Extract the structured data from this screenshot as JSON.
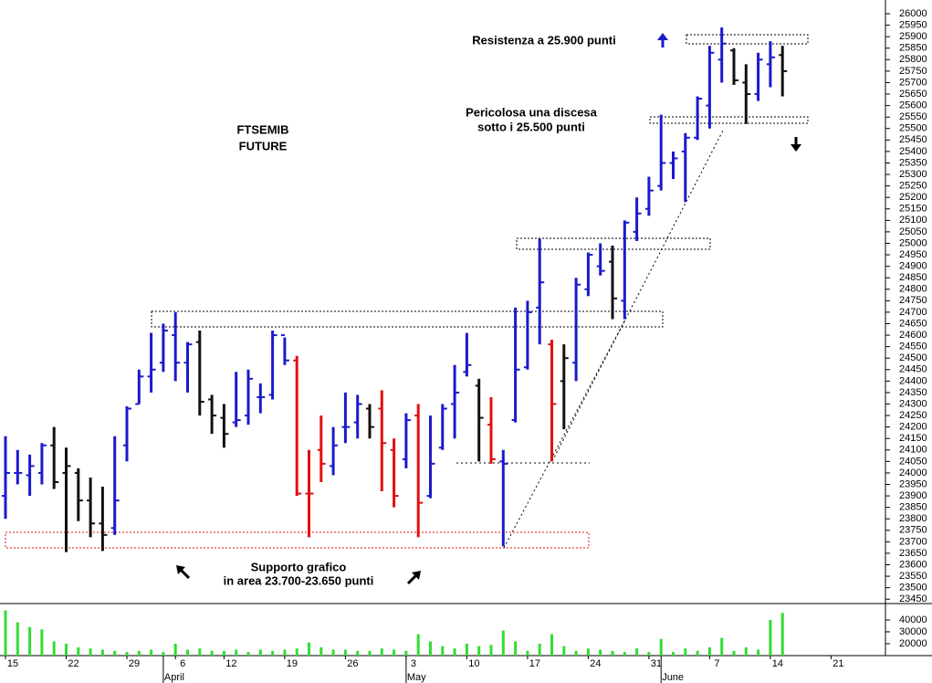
{
  "chart_data": {
    "type": "ohlc",
    "categories": [
      "15",
      null,
      null,
      null,
      null,
      "22",
      null,
      null,
      null,
      null,
      "29",
      null,
      null,
      null,
      "6",
      null,
      null,
      null,
      "12",
      null,
      null,
      null,
      null,
      "19",
      null,
      null,
      null,
      null,
      "26",
      null,
      null,
      null,
      null,
      "3",
      null,
      null,
      null,
      null,
      "10",
      null,
      null,
      null,
      null,
      "17",
      null,
      null,
      null,
      null,
      "24",
      null,
      null,
      null,
      null,
      "31",
      null,
      null,
      null,
      null,
      "7",
      null,
      null,
      null,
      null,
      "14",
      null,
      null,
      null,
      null,
      "21"
    ],
    "months": [
      null,
      null,
      null,
      null,
      null,
      null,
      null,
      null,
      null,
      null,
      null,
      null,
      null,
      "April",
      null,
      null,
      null,
      null,
      null,
      null,
      null,
      null,
      null,
      null,
      null,
      null,
      null,
      null,
      null,
      null,
      null,
      null,
      null,
      "May",
      null,
      null,
      null,
      null,
      null,
      null,
      null,
      null,
      null,
      null,
      null,
      null,
      null,
      null,
      null,
      null,
      null,
      null,
      null,
      null,
      "June",
      null,
      null,
      null,
      null,
      null,
      null,
      null,
      null,
      null,
      null,
      null,
      null,
      null,
      null
    ],
    "open": [
      23900,
      24000,
      23990,
      24000,
      24120,
      24000,
      24000,
      23880,
      23780,
      23760,
      24120,
      24300,
      24420,
      24480,
      24600,
      24480,
      24570,
      24320,
      24240,
      24220,
      24250,
      24330,
      24340,
      24600,
      24490,
      23910,
      24100,
      24030,
      24200,
      24220,
      24280,
      24280,
      24100,
      24060,
      24250,
      23900,
      24110,
      24300,
      24440,
      24380,
      24210,
      24050,
      24230,
      24460,
      24720,
      24560,
      24400,
      24480,
      24800,
      24900,
      24920,
      24750,
      25050,
      25150,
      25250,
      25350,
      25400,
      25460,
      25600,
      25800,
      25840,
      25700,
      25650,
      25780,
      25820,
      null,
      null,
      null,
      null
    ],
    "high": [
      24160,
      24100,
      24080,
      24130,
      24200,
      24110,
      24020,
      23980,
      23940,
      24160,
      24290,
      24450,
      24610,
      24650,
      24700,
      24570,
      24620,
      24340,
      24300,
      24440,
      24450,
      24390,
      24620,
      24590,
      24510,
      24100,
      24250,
      24200,
      24350,
      24340,
      24300,
      24360,
      24150,
      24260,
      24300,
      24250,
      24300,
      24470,
      24610,
      24410,
      24330,
      24100,
      24720,
      24750,
      25020,
      24580,
      24560,
      24850,
      24960,
      25000,
      24990,
      25100,
      25200,
      25290,
      25560,
      25400,
      25480,
      25640,
      25860,
      25940,
      25850,
      25780,
      25830,
      25880,
      25860,
      null,
      null,
      null,
      null
    ],
    "low": [
      23800,
      23950,
      23900,
      23950,
      23930,
      23655,
      23790,
      23720,
      23660,
      23730,
      24050,
      24300,
      24350,
      24440,
      24400,
      24350,
      24250,
      24170,
      24110,
      24200,
      24210,
      24260,
      24320,
      24470,
      23900,
      23720,
      23960,
      23990,
      24130,
      24150,
      24150,
      23920,
      23850,
      24020,
      23720,
      23890,
      24100,
      24150,
      24420,
      24050,
      24040,
      23680,
      24220,
      24450,
      24560,
      24050,
      24190,
      24400,
      24770,
      24860,
      24670,
      24670,
      25010,
      25120,
      25230,
      25280,
      25180,
      25450,
      25500,
      25700,
      25690,
      25520,
      25620,
      25680,
      25640,
      null,
      null,
      null,
      null
    ],
    "close": [
      24000,
      24000,
      24030,
      24120,
      23960,
      24030,
      23880,
      23780,
      23730,
      23880,
      24280,
      24420,
      24450,
      24620,
      24480,
      24560,
      24310,
      24250,
      24170,
      24230,
      24410,
      24330,
      24600,
      24490,
      23910,
      23910,
      24040,
      24120,
      24200,
      24300,
      24200,
      24130,
      23900,
      24230,
      23870,
      24040,
      24280,
      24350,
      24470,
      24240,
      24060,
      24040,
      24450,
      24700,
      24830,
      24300,
      24500,
      24820,
      24950,
      24880,
      24760,
      25090,
      25130,
      25230,
      25350,
      25370,
      25460,
      25630,
      25830,
      25870,
      25710,
      25650,
      25800,
      25810,
      25750,
      null,
      null,
      null,
      null
    ],
    "colors": [
      "#1a1acc",
      "#1a1acc",
      "#1a1acc",
      "#1a1acc",
      "#111111",
      "#111111",
      "#111111",
      "#111111",
      "#111111",
      "#1a1acc",
      "#1a1acc",
      "#1a1acc",
      "#1a1acc",
      "#1a1acc",
      "#1a1acc",
      "#1a1acc",
      "#111111",
      "#111111",
      "#111111",
      "#1a1acc",
      "#1a1acc",
      "#1a1acc",
      "#1a1acc",
      "#1a1acc",
      "#e01010",
      "#e01010",
      "#e01010",
      "#1a1acc",
      "#1a1acc",
      "#1a1acc",
      "#111111",
      "#e01010",
      "#e01010",
      "#1a1acc",
      "#e01010",
      "#1a1acc",
      "#1a1acc",
      "#1a1acc",
      "#1a1acc",
      "#111111",
      "#e01010",
      "#1a1acc",
      "#1a1acc",
      "#1a1acc",
      "#1a1acc",
      "#e01010",
      "#111111",
      "#1a1acc",
      "#1a1acc",
      "#1a1acc",
      "#111111",
      "#1a1acc",
      "#1a1acc",
      "#1a1acc",
      "#1a1acc",
      "#1a1acc",
      "#1a1acc",
      "#1a1acc",
      "#1a1acc",
      "#1a1acc",
      "#111111",
      "#111111",
      "#1a1acc",
      "#1a1acc",
      "#111111",
      null,
      null,
      null,
      null
    ],
    "ylim": [
      23435,
      26020
    ],
    "yticks": [
      23450,
      23500,
      23550,
      23600,
      23650,
      23700,
      23750,
      23800,
      23850,
      23900,
      23950,
      24000,
      24050,
      24100,
      24150,
      24200,
      24250,
      24300,
      24350,
      24400,
      24450,
      24500,
      24550,
      24600,
      24650,
      24700,
      24750,
      24800,
      24850,
      24900,
      24950,
      25000,
      25050,
      25100,
      25150,
      25200,
      25250,
      25300,
      25350,
      25400,
      25450,
      25500,
      25550,
      25600,
      25650,
      25700,
      25750,
      25800,
      25850,
      25900,
      25950,
      26000
    ],
    "volume": {
      "color": "#33dd33",
      "values": [
        48000,
        38000,
        34000,
        32000,
        22000,
        20000,
        17000,
        16000,
        15000,
        14000,
        13000,
        14000,
        15000,
        13000,
        20000,
        15000,
        16000,
        14000,
        14000,
        15000,
        13000,
        15000,
        14000,
        15000,
        16000,
        21000,
        17000,
        15000,
        15000,
        14000,
        14000,
        16000,
        15000,
        14000,
        28000,
        22000,
        18000,
        16000,
        20000,
        18000,
        19000,
        31000,
        22000,
        14000,
        20000,
        28000,
        18000,
        14000,
        16000,
        15000,
        14000,
        13000,
        16000,
        13000,
        24000,
        13000,
        16000,
        14000,
        17000,
        25000,
        14000,
        17000,
        15000,
        40000,
        46000,
        null,
        null,
        null,
        null
      ],
      "ylim": [
        10000,
        53000
      ],
      "yticks": [
        20000,
        30000,
        40000
      ]
    },
    "annotations": {
      "title_1": "FTSEMIB",
      "title_2": "FUTURE",
      "resistance": "Resistenza a 25.900 punti",
      "danger_1": "Pericolosa una discesa",
      "danger_2": "sotto i 25.500 punti",
      "support_1": "Supporto grafico",
      "support_2": "in area 23.700-23.650 punti"
    }
  }
}
